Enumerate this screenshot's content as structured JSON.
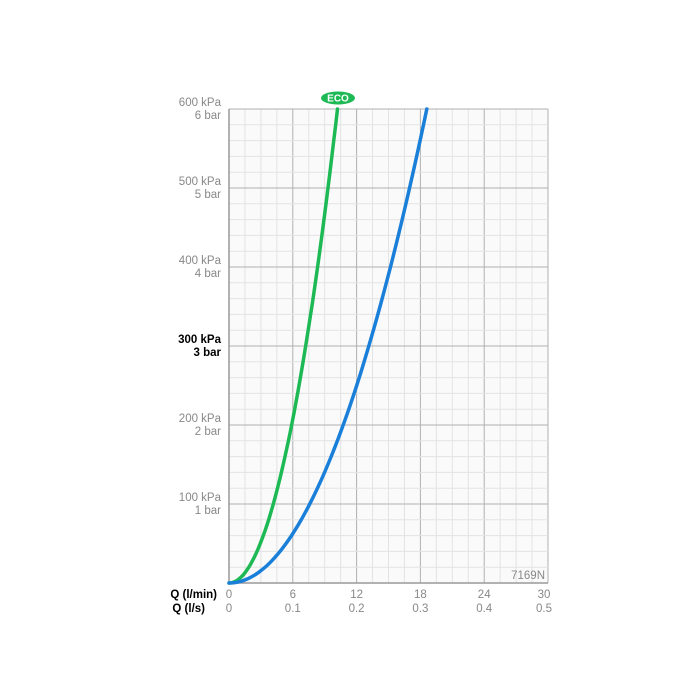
{
  "chart_data": {
    "type": "line",
    "title": "",
    "xlabel": "Q (l/min)",
    "xlabel_secondary": "Q (l/s)",
    "ylabel": "",
    "xlim": [
      0,
      30
    ],
    "ylim": [
      0,
      600
    ],
    "x_ticks": [
      "0",
      "6",
      "12",
      "18",
      "24",
      "30"
    ],
    "x_ticks_secondary": [
      "0",
      "0.1",
      "0.2",
      "0.3",
      "0.4",
      "0.5"
    ],
    "y_ticks": [
      {
        "kpa": "100 kPa",
        "bar": "1 bar"
      },
      {
        "kpa": "200 kPa",
        "bar": "2 bar"
      },
      {
        "kpa": "300 kPa",
        "bar": "3 bar",
        "bold": true
      },
      {
        "kpa": "400 kPa",
        "bar": "4 bar"
      },
      {
        "kpa": "500 kPa",
        "bar": "5 bar"
      },
      {
        "kpa": "600 kPa",
        "bar": "6 bar"
      }
    ],
    "grid": true,
    "annotation": "7169N",
    "series": [
      {
        "name": "ECO",
        "color": "#1db954",
        "x": [
          0,
          1,
          2,
          3,
          4,
          5,
          6,
          7,
          8,
          9,
          10.2
        ],
        "y": [
          0,
          6,
          23,
          52,
          92,
          144,
          208,
          283,
          369,
          467,
          600
        ]
      },
      {
        "color": "#1a7fd9",
        "x": [
          0,
          1,
          2,
          4,
          6,
          8,
          10,
          12,
          14,
          16,
          18.6
        ],
        "y": [
          0,
          2,
          7,
          28,
          62,
          111,
          173,
          249,
          339,
          443,
          600
        ]
      }
    ]
  }
}
